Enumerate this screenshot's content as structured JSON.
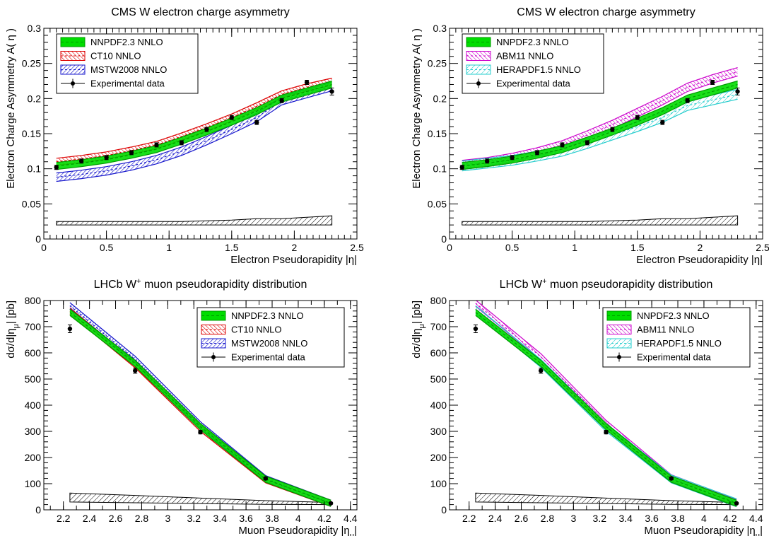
{
  "colors": {
    "nnpdf": "#00dd00",
    "nnpdf_line": "#009900",
    "ct10": "#dd0000",
    "mstw": "#1515cc",
    "abm": "#cc00cc",
    "hera": "#22cccc",
    "data": "#000000"
  },
  "chart_data": [
    {
      "type": "line",
      "title": "CMS W electron charge asymmetry",
      "xlabel": "Electron Pseudorapidity |η|",
      "ylabel": "Electron Charge Asymmetry A( η )",
      "xlim": [
        0,
        2.5
      ],
      "ylim": [
        0,
        0.3
      ],
      "xticks": [
        "0",
        "0.5",
        "1",
        "1.5",
        "2",
        "2.5"
      ],
      "yticks": [
        "0",
        "0.05",
        "0.1",
        "0.15",
        "0.2",
        "0.25",
        "0.3"
      ],
      "legend_position": "top-left",
      "x": [
        0.1,
        0.3,
        0.5,
        0.7,
        0.9,
        1.1,
        1.3,
        1.5,
        1.7,
        1.9,
        2.1,
        2.3
      ],
      "series": [
        {
          "name": "NNPDF2.3 NNLO",
          "style": "nnpdf",
          "values": [
            0.104,
            0.108,
            0.113,
            0.12,
            0.128,
            0.14,
            0.153,
            0.167,
            0.182,
            0.2,
            0.21,
            0.22
          ],
          "band": 0.005
        },
        {
          "name": "CT10 NNLO",
          "style": "ct10",
          "values": [
            0.11,
            0.114,
            0.119,
            0.126,
            0.134,
            0.146,
            0.159,
            0.173,
            0.189,
            0.206,
            0.216,
            0.224
          ],
          "band": 0.005
        },
        {
          "name": "MSTW2008 NNLO",
          "style": "mstw",
          "values": [
            0.088,
            0.092,
            0.097,
            0.104,
            0.113,
            0.125,
            0.14,
            0.156,
            0.173,
            0.197,
            0.207,
            0.217
          ],
          "band": 0.006
        },
        {
          "name": "Experimental data",
          "style": "data",
          "values": [
            0.102,
            0.111,
            0.116,
            0.123,
            0.134,
            0.137,
            0.156,
            0.173,
            0.166,
            0.197,
            0.223,
            0.21
          ],
          "errors": [
            0.003,
            0.003,
            0.003,
            0.003,
            0.003,
            0.003,
            0.003,
            0.003,
            0.003,
            0.003,
            0.003,
            0.005
          ]
        }
      ],
      "syst_band": {
        "lower": [
          0.02,
          0.02,
          0.02,
          0.02,
          0.02,
          0.02,
          0.02,
          0.02,
          0.02,
          0.02,
          0.02,
          0.02
        ],
        "upper": [
          0.025,
          0.025,
          0.025,
          0.025,
          0.025,
          0.025,
          0.026,
          0.027,
          0.029,
          0.029,
          0.031,
          0.033
        ]
      }
    },
    {
      "type": "line",
      "title": "CMS W electron charge asymmetry",
      "xlabel": "Electron Pseudorapidity |η|",
      "ylabel": "Electron Charge Asymmetry A( η )",
      "xlim": [
        0,
        2.5
      ],
      "ylim": [
        0,
        0.3
      ],
      "xticks": [
        "0",
        "0.5",
        "1",
        "1.5",
        "2",
        "2.5"
      ],
      "yticks": [
        "0",
        "0.05",
        "0.1",
        "0.15",
        "0.2",
        "0.25",
        "0.3"
      ],
      "legend_position": "top-left",
      "x": [
        0.1,
        0.3,
        0.5,
        0.7,
        0.9,
        1.1,
        1.3,
        1.5,
        1.7,
        1.9,
        2.1,
        2.3
      ],
      "series": [
        {
          "name": "NNPDF2.3 NNLO",
          "style": "nnpdf",
          "values": [
            0.104,
            0.108,
            0.113,
            0.12,
            0.128,
            0.14,
            0.153,
            0.167,
            0.182,
            0.2,
            0.21,
            0.22
          ],
          "band": 0.005
        },
        {
          "name": "ABM11 NNLO",
          "style": "abm",
          "values": [
            0.106,
            0.11,
            0.116,
            0.124,
            0.134,
            0.148,
            0.163,
            0.18,
            0.197,
            0.216,
            0.228,
            0.238
          ],
          "band": 0.006
        },
        {
          "name": "HERAPDF1.5 NNLO",
          "style": "hera",
          "values": [
            0.104,
            0.108,
            0.112,
            0.118,
            0.125,
            0.136,
            0.148,
            0.16,
            0.173,
            0.19,
            0.198,
            0.206
          ],
          "band": 0.007
        },
        {
          "name": "Experimental data",
          "style": "data",
          "values": [
            0.102,
            0.111,
            0.116,
            0.123,
            0.134,
            0.137,
            0.156,
            0.173,
            0.166,
            0.197,
            0.223,
            0.21
          ],
          "errors": [
            0.003,
            0.003,
            0.003,
            0.003,
            0.003,
            0.003,
            0.003,
            0.003,
            0.003,
            0.003,
            0.003,
            0.005
          ]
        }
      ],
      "syst_band": {
        "lower": [
          0.02,
          0.02,
          0.02,
          0.02,
          0.02,
          0.02,
          0.02,
          0.02,
          0.02,
          0.02,
          0.02,
          0.02
        ],
        "upper": [
          0.025,
          0.025,
          0.025,
          0.025,
          0.025,
          0.025,
          0.026,
          0.027,
          0.029,
          0.029,
          0.031,
          0.033
        ]
      }
    },
    {
      "type": "line",
      "title_main": "LHCb W",
      "title_sup": "+",
      "title_rest": " muon pseudorapidity distribution",
      "xlabel": "Muon Pseudorapidity |η",
      "xlabel_sub": "μ",
      "xlabel_end": "|",
      "ylabel": "dσ/d|η",
      "ylabel_sub": "μ",
      "ylabel_end": "| [pb]",
      "xlim": [
        2.05,
        4.45
      ],
      "ylim": [
        0,
        800
      ],
      "xticks": [
        "2.2",
        "2.4",
        "2.6",
        "2.8",
        "3",
        "3.2",
        "3.4",
        "3.6",
        "3.8",
        "4",
        "4.2",
        "4.4"
      ],
      "yticks": [
        "0",
        "100",
        "200",
        "300",
        "400",
        "500",
        "600",
        "700",
        "800"
      ],
      "legend_position": "top-right",
      "x": [
        2.25,
        2.75,
        3.25,
        3.75,
        4.25
      ],
      "series": [
        {
          "name": "NNPDF2.3 NNLO",
          "style": "nnpdf",
          "values": [
            755,
            560,
            318,
            117,
            25
          ],
          "band": 12
        },
        {
          "name": "CT10 NNLO",
          "style": "ct10",
          "values": [
            760,
            555,
            312,
            115,
            25
          ],
          "band": 12
        },
        {
          "name": "MSTW2008 NNLO",
          "style": "mstw",
          "values": [
            780,
            575,
            325,
            119,
            25
          ],
          "band": 12
        },
        {
          "name": "Experimental data",
          "style": "data",
          "values": [
            692,
            532,
            297,
            120,
            25
          ],
          "errors": [
            15,
            10,
            7,
            5,
            3
          ]
        }
      ],
      "syst_band": {
        "lower": [
          30,
          27,
          24,
          21,
          20
        ],
        "upper": [
          64,
          55,
          45,
          35,
          28
        ]
      }
    },
    {
      "type": "line",
      "title_main": "LHCb W",
      "title_sup": "+",
      "title_rest": " muon pseudorapidity distribution",
      "xlabel": "Muon Pseudorapidity |η",
      "xlabel_sub": "μ",
      "xlabel_end": "|",
      "ylabel": "dσ/d|η",
      "ylabel_sub": "μ",
      "ylabel_end": "| [pb]",
      "xlim": [
        2.05,
        4.45
      ],
      "ylim": [
        0,
        800
      ],
      "xticks": [
        "2.2",
        "2.4",
        "2.6",
        "2.8",
        "3",
        "3.2",
        "3.4",
        "3.6",
        "3.8",
        "4",
        "4.2",
        "4.4"
      ],
      "yticks": [
        "0",
        "100",
        "200",
        "300",
        "400",
        "500",
        "600",
        "700",
        "800"
      ],
      "legend_position": "top-right",
      "x": [
        2.25,
        2.75,
        3.25,
        3.75,
        4.25
      ],
      "series": [
        {
          "name": "NNPDF2.3 NNLO",
          "style": "nnpdf",
          "values": [
            755,
            560,
            318,
            117,
            25
          ],
          "band": 12
        },
        {
          "name": "ABM11 NNLO",
          "style": "abm",
          "values": [
            790,
            585,
            330,
            122,
            28
          ],
          "band": 12
        },
        {
          "name": "HERAPDF1.5 NNLO",
          "style": "hera",
          "values": [
            765,
            560,
            315,
            118,
            27
          ],
          "band": 15
        },
        {
          "name": "Experimental data",
          "style": "data",
          "values": [
            692,
            532,
            297,
            120,
            25
          ],
          "errors": [
            15,
            10,
            7,
            5,
            3
          ]
        }
      ],
      "syst_band": {
        "lower": [
          30,
          27,
          24,
          21,
          20
        ],
        "upper": [
          64,
          55,
          45,
          35,
          28
        ]
      }
    }
  ]
}
